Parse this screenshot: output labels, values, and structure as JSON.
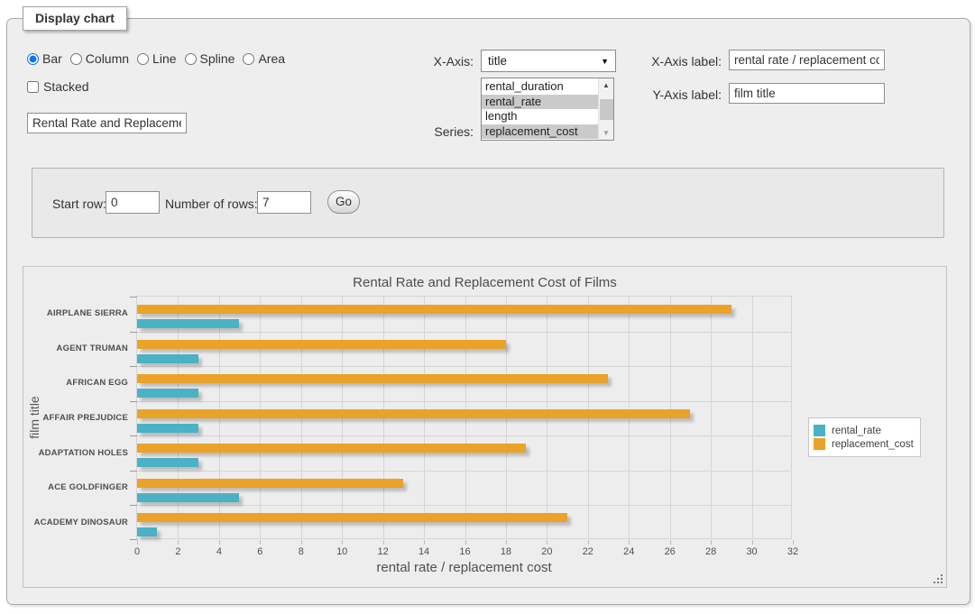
{
  "panel": {
    "legend": "Display chart"
  },
  "form": {
    "chart_types": [
      {
        "label": "Bar",
        "selected": true
      },
      {
        "label": "Column",
        "selected": false
      },
      {
        "label": "Line",
        "selected": false
      },
      {
        "label": "Spline",
        "selected": false
      },
      {
        "label": "Area",
        "selected": false
      }
    ],
    "stacked_label": "Stacked",
    "chart_title_value": "Rental Rate and Replacement Cost of Films",
    "x_axis_label_text": "X-Axis:",
    "x_axis_value": "title",
    "series_label_text": "Series:",
    "series_options": [
      {
        "label": "rental_duration",
        "selected": false
      },
      {
        "label": "rental_rate",
        "selected": true
      },
      {
        "label": "length",
        "selected": false
      },
      {
        "label": "replacement_cost",
        "selected": true
      }
    ],
    "x_axis_label_field": {
      "label": "X-Axis label:",
      "value": "rental rate / replacement cost"
    },
    "y_axis_label_field": {
      "label": "Y-Axis label:",
      "value": "film title"
    }
  },
  "row_controls": {
    "start_row_label": "Start row:",
    "start_row_value": "0",
    "num_rows_label": "Number of rows:",
    "num_rows_value": "7",
    "go_label": "Go"
  },
  "chart_data": {
    "type": "bar",
    "orientation": "horizontal",
    "title": "Rental Rate and Replacement Cost of Films",
    "categories": [
      "AIRPLANE SIERRA",
      "AGENT TRUMAN",
      "AFRICAN EGG",
      "AFFAIR PREJUDICE",
      "ADAPTATION HOLES",
      "ACE GOLDFINGER",
      "ACADEMY DINOSAUR"
    ],
    "series": [
      {
        "name": "rental_rate",
        "color": "#4bb2c5",
        "values": [
          4.99,
          2.99,
          2.99,
          2.99,
          2.99,
          4.99,
          0.99
        ]
      },
      {
        "name": "replacement_cost",
        "color": "#eaa228",
        "values": [
          28.99,
          17.99,
          22.99,
          26.99,
          18.99,
          12.99,
          20.99
        ]
      }
    ],
    "xlabel": "rental rate / replacement cost",
    "ylabel": "film title",
    "xlim": [
      0,
      32
    ],
    "xticks": [
      0,
      2,
      4,
      6,
      8,
      10,
      12,
      14,
      16,
      18,
      20,
      22,
      24,
      26,
      28,
      30,
      32
    ],
    "grid": true,
    "legend_position": "right"
  }
}
